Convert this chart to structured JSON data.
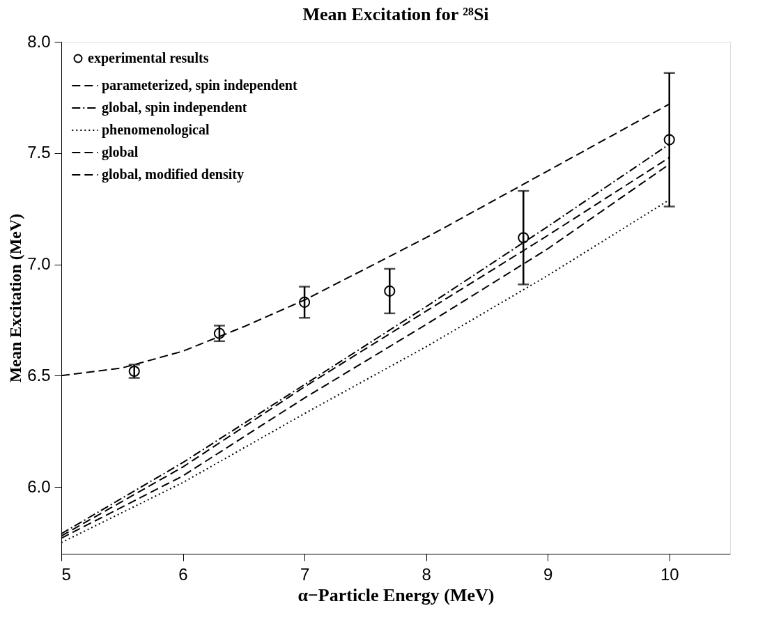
{
  "chart_data": {
    "type": "line",
    "title": "Mean Excitation for ²⁸Si",
    "xlabel": "α−Particle Energy (MeV)",
    "ylabel": "Mean Excitation (MeV)",
    "xlim": [
      5,
      10.5
    ],
    "xticks": [
      {
        "value": 5,
        "label": "5"
      },
      {
        "value": 6,
        "label": "6"
      },
      {
        "value": 7,
        "label": "7"
      },
      {
        "value": 8,
        "label": "8"
      },
      {
        "value": 9,
        "label": "9"
      },
      {
        "value": 10,
        "label": "10"
      }
    ],
    "ylim": [
      5.7,
      8.0
    ],
    "yticks": [
      {
        "value": 6,
        "label": "6.0"
      },
      {
        "value": 6.5,
        "label": "6.5"
      },
      {
        "value": 7,
        "label": "7.0"
      },
      {
        "value": 7.5,
        "label": "7.5"
      },
      {
        "value": 8,
        "label": "8.0"
      }
    ],
    "grid": false,
    "legend": "top left",
    "series": [
      {
        "name": "experimental results",
        "type": "scatter",
        "marker": "circle",
        "color": "#000000",
        "x": [
          5.6,
          6.3,
          7.0,
          7.7,
          8.8,
          10.0
        ],
        "values": [
          6.52,
          6.69,
          6.83,
          6.88,
          7.12,
          7.56
        ],
        "errors": [
          0.03,
          0.035,
          0.07,
          0.1,
          0.21,
          0.3
        ]
      },
      {
        "name": "parameterized, spin independent",
        "type": "line",
        "line_style": "dashed",
        "color": "#000000",
        "x": [
          5,
          6,
          7,
          8,
          9,
          10
        ],
        "values": [
          5.77,
          6.05,
          6.4,
          6.73,
          7.07,
          7.45
        ]
      },
      {
        "name": "global, spin independent",
        "type": "line",
        "line_style": "dashdot",
        "color": "#000000",
        "x": [
          5,
          6,
          7,
          8,
          9,
          10
        ],
        "values": [
          5.79,
          6.11,
          6.46,
          6.81,
          7.17,
          7.54
        ]
      },
      {
        "name": "phenomenological",
        "type": "line",
        "line_style": "dotted",
        "color": "#000000",
        "x": [
          5,
          6,
          7,
          8,
          9,
          10
        ],
        "values": [
          5.75,
          6.02,
          6.33,
          6.63,
          6.95,
          7.29
        ]
      },
      {
        "name": "global",
        "type": "line",
        "line_style": "dashed",
        "color": "#000000",
        "x": [
          5,
          6,
          7,
          8,
          9,
          10
        ],
        "values": [
          5.78,
          6.09,
          6.45,
          6.79,
          7.13,
          7.48
        ]
      },
      {
        "name": "global, modified density",
        "type": "line",
        "line_style": "dashed",
        "color": "#000000",
        "x": [
          5,
          5.5,
          6,
          6.5,
          7,
          7.5,
          8,
          8.5,
          9,
          9.5,
          10
        ],
        "values": [
          6.5,
          6.535,
          6.61,
          6.72,
          6.84,
          6.98,
          7.12,
          7.27,
          7.42,
          7.57,
          7.72
        ]
      }
    ]
  }
}
